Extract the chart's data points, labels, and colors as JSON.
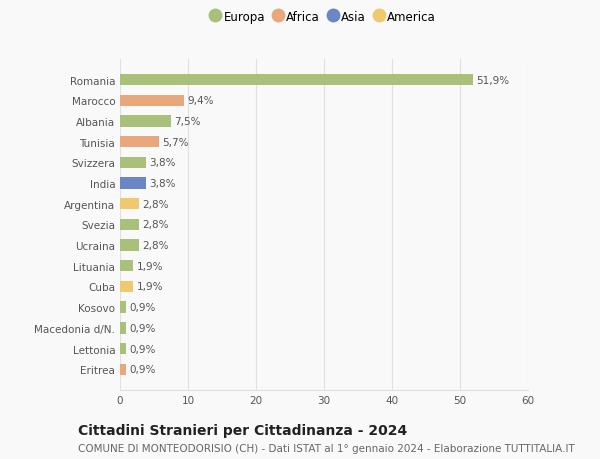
{
  "countries": [
    "Romania",
    "Marocco",
    "Albania",
    "Tunisia",
    "Svizzera",
    "India",
    "Argentina",
    "Svezia",
    "Ucraina",
    "Lituania",
    "Cuba",
    "Kosovo",
    "Macedonia d/N.",
    "Lettonia",
    "Eritrea"
  ],
  "values": [
    51.9,
    9.4,
    7.5,
    5.7,
    3.8,
    3.8,
    2.8,
    2.8,
    2.8,
    1.9,
    1.9,
    0.9,
    0.9,
    0.9,
    0.9
  ],
  "labels": [
    "51,9%",
    "9,4%",
    "7,5%",
    "5,7%",
    "3,8%",
    "3,8%",
    "2,8%",
    "2,8%",
    "2,8%",
    "1,9%",
    "1,9%",
    "0,9%",
    "0,9%",
    "0,9%",
    "0,9%"
  ],
  "continents": [
    "Europa",
    "Africa",
    "Europa",
    "Africa",
    "Europa",
    "Asia",
    "America",
    "Europa",
    "Europa",
    "Europa",
    "America",
    "Europa",
    "Europa",
    "Europa",
    "Africa"
  ],
  "continent_colors": {
    "Europa": "#a8c07a",
    "Africa": "#e8a87c",
    "Asia": "#6b86c4",
    "America": "#f0c86e"
  },
  "legend_order": [
    "Europa",
    "Africa",
    "Asia",
    "America"
  ],
  "legend_colors": [
    "#a8c07a",
    "#e8a87c",
    "#6b86c4",
    "#f0c86e"
  ],
  "xlim": [
    0,
    60
  ],
  "xticks": [
    0,
    10,
    20,
    30,
    40,
    50,
    60
  ],
  "background_color": "#f9f9f9",
  "bar_height": 0.55,
  "title": "Cittadini Stranieri per Cittadinanza - 2024",
  "subtitle": "COMUNE DI MONTEODORISIO (CH) - Dati ISTAT al 1° gennaio 2024 - Elaborazione TUTTITALIA.IT",
  "grid_color": "#e0e0e0",
  "label_fontsize": 7.5,
  "tick_fontsize": 7.5,
  "title_fontsize": 10,
  "subtitle_fontsize": 7.5
}
